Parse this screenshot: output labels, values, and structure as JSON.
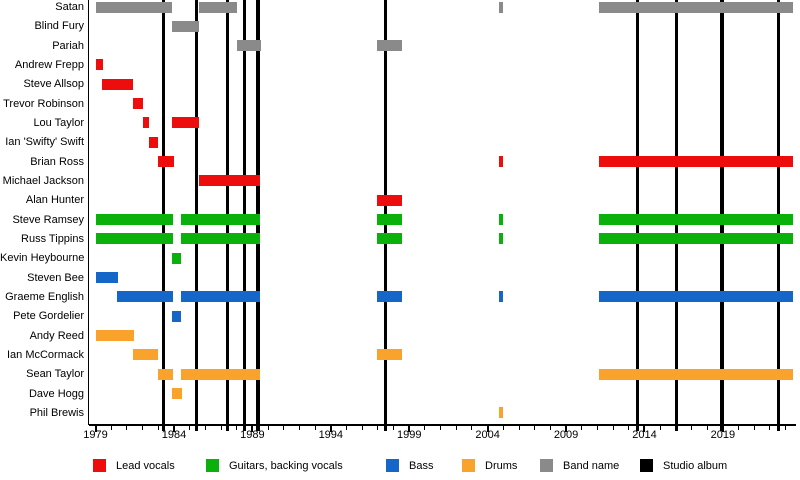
{
  "chart_data": {
    "type": "timeline",
    "description_visible_text_only": "Band membership timeline with colored tenure bars per member and vertical lines for studio albums",
    "x_axis": {
      "start": 1978.55,
      "end": 2023.66,
      "label_years": [
        1979,
        1984,
        1989,
        1994,
        1999,
        2004,
        2009,
        2014,
        2019
      ],
      "minor_tick_first": 1979,
      "minor_tick_last": 2023,
      "minor_tick_every": 1
    },
    "roles": {
      "lead_vocals": {
        "label": "Lead vocals",
        "color": "#ee0d0d"
      },
      "guitars": {
        "label": "Guitars, backing vocals",
        "color": "#0bb10b"
      },
      "bass": {
        "label": "Bass",
        "color": "#1467c8"
      },
      "drums": {
        "label": "Drums",
        "color": "#f9a22c"
      },
      "band_name": {
        "label": "Band name",
        "color": "#8a8a8a"
      },
      "studio_album": {
        "label": "Studio album",
        "color": "#000000"
      }
    },
    "legend_order": [
      "lead_vocals",
      "guitars",
      "bass",
      "drums",
      "band_name",
      "studio_album"
    ],
    "album_line_years": [
      1983.35,
      1985.45,
      1987.4,
      1988.5,
      1989.35,
      1997.5,
      2013.55,
      2016.05,
      2018.95,
      2022.55
    ],
    "rows": [
      {
        "name": "Satan",
        "role": "band_name",
        "segments": [
          [
            1979.05,
            1983.9
          ],
          [
            1985.6,
            1988.05
          ],
          [
            2004.72,
            2004.97
          ],
          [
            2011.1,
            2023.45
          ]
        ]
      },
      {
        "name": "Blind Fury",
        "role": "band_name",
        "segments": [
          [
            1983.9,
            1985.57
          ]
        ]
      },
      {
        "name": "Pariah",
        "role": "band_name",
        "segments": [
          [
            1988.05,
            1989.55
          ],
          [
            1996.95,
            1998.55
          ]
        ]
      },
      {
        "name": "Andrew Frepp",
        "role": "lead_vocals",
        "segments": [
          [
            1979.05,
            1979.45
          ]
        ]
      },
      {
        "name": "Steve Allsop",
        "role": "lead_vocals",
        "segments": [
          [
            1979.4,
            1981.4
          ]
        ]
      },
      {
        "name": "Trevor Robinson",
        "role": "lead_vocals",
        "segments": [
          [
            1981.4,
            1982.0
          ]
        ]
      },
      {
        "name": "Lou Taylor",
        "role": "lead_vocals",
        "segments": [
          [
            1982.0,
            1982.4
          ],
          [
            1983.9,
            1985.57
          ]
        ]
      },
      {
        "name": "Ian 'Swifty' Swift",
        "role": "lead_vocals",
        "segments": [
          [
            1982.4,
            1982.95
          ]
        ]
      },
      {
        "name": "Brian Ross",
        "role": "lead_vocals",
        "segments": [
          [
            1982.95,
            1984.0
          ],
          [
            2004.72,
            2004.97
          ],
          [
            2011.1,
            2023.45
          ]
        ]
      },
      {
        "name": "Michael Jackson",
        "role": "lead_vocals",
        "segments": [
          [
            1985.6,
            1989.5
          ]
        ]
      },
      {
        "name": "Alan Hunter",
        "role": "lead_vocals",
        "segments": [
          [
            1996.95,
            1998.55
          ]
        ]
      },
      {
        "name": "Steve Ramsey",
        "role": "guitars",
        "segments": [
          [
            1979.05,
            1983.95
          ],
          [
            1984.45,
            1989.5
          ],
          [
            1996.95,
            1998.55
          ],
          [
            2004.72,
            2004.97
          ],
          [
            2011.1,
            2023.45
          ]
        ]
      },
      {
        "name": "Russ Tippins",
        "role": "guitars",
        "segments": [
          [
            1979.05,
            1983.95
          ],
          [
            1984.45,
            1989.5
          ],
          [
            1996.95,
            1998.55
          ],
          [
            2004.72,
            2004.97
          ],
          [
            2011.1,
            2023.45
          ]
        ]
      },
      {
        "name": "Kevin Heybourne",
        "role": "guitars",
        "segments": [
          [
            1983.9,
            1984.43
          ]
        ]
      },
      {
        "name": "Steven Bee",
        "role": "bass",
        "segments": [
          [
            1979.05,
            1980.4
          ]
        ]
      },
      {
        "name": "Graeme English",
        "role": "bass",
        "segments": [
          [
            1980.35,
            1983.95
          ],
          [
            1984.45,
            1989.5
          ],
          [
            1996.95,
            1998.55
          ],
          [
            2004.72,
            2004.97
          ],
          [
            2011.1,
            2023.45
          ]
        ]
      },
      {
        "name": "Pete Gordelier",
        "role": "bass",
        "segments": [
          [
            1983.9,
            1984.43
          ]
        ]
      },
      {
        "name": "Andy Reed",
        "role": "drums",
        "segments": [
          [
            1979.05,
            1981.45
          ]
        ]
      },
      {
        "name": "Ian McCormack",
        "role": "drums",
        "segments": [
          [
            1981.4,
            1983.0
          ],
          [
            1996.95,
            1998.55
          ]
        ]
      },
      {
        "name": "Sean Taylor",
        "role": "drums",
        "segments": [
          [
            1982.95,
            1983.95
          ],
          [
            1984.45,
            1989.5
          ],
          [
            2011.1,
            2023.45
          ]
        ]
      },
      {
        "name": "Dave Hogg",
        "role": "drums",
        "segments": [
          [
            1983.9,
            1984.53
          ]
        ]
      },
      {
        "name": "Phil Brewis",
        "role": "drums",
        "segments": [
          [
            2004.72,
            2004.97
          ]
        ]
      }
    ]
  }
}
